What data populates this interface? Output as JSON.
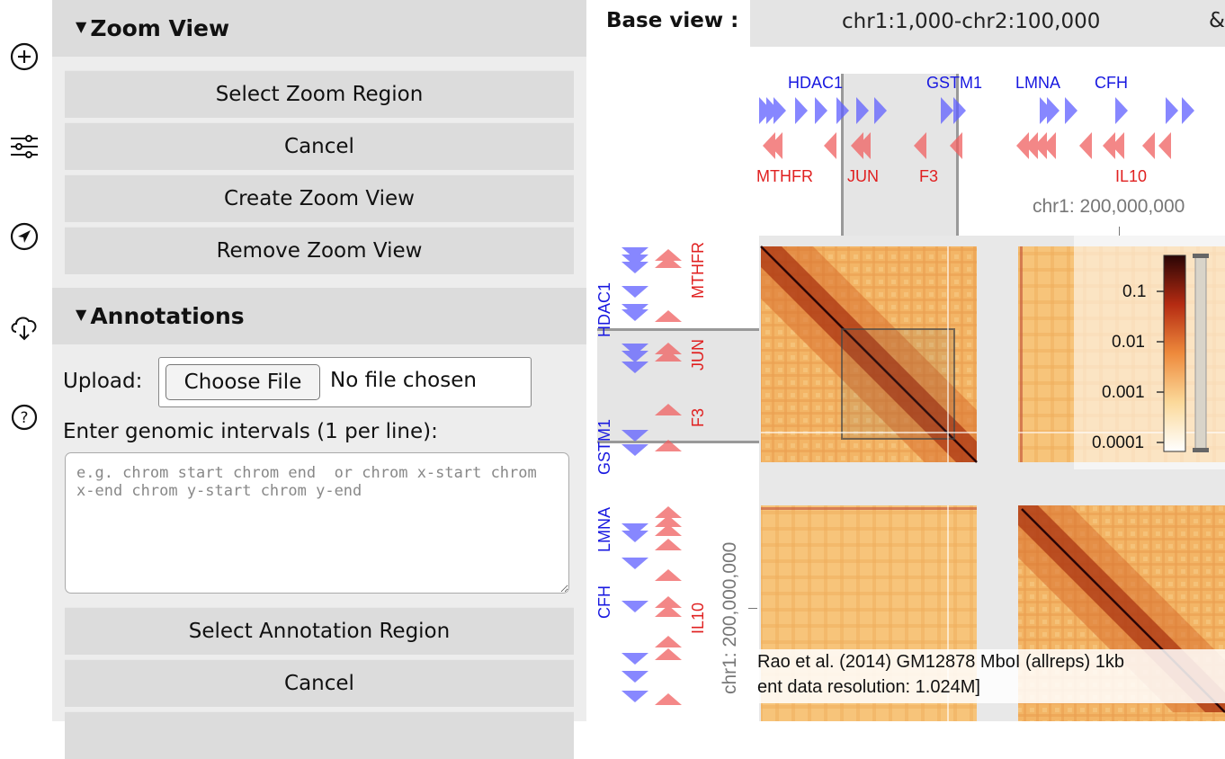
{
  "icons": [
    "plus-circle-icon",
    "sliders-icon",
    "navigate-icon",
    "cloud-download-icon",
    "help-icon"
  ],
  "zoom_view": {
    "title": "Zoom View",
    "buttons": [
      "Select Zoom Region",
      "Cancel",
      "Create Zoom View",
      "Remove Zoom View"
    ]
  },
  "annotations": {
    "title": "Annotations",
    "upload_label": "Upload:",
    "choose_file": "Choose File",
    "no_file": "No file chosen",
    "intervals_label": "Enter genomic intervals (1 per line):",
    "intervals_placeholder": "e.g. chrom start chrom end  or chrom x-start chrom x-end chrom y-start chrom y-end",
    "buttons": [
      "Select Annotation Region",
      "Cancel"
    ]
  },
  "viewer": {
    "base_view_label": "Base view :",
    "base_view_value": "chr1:1,000-chr2:100,000",
    "base_view_trailing": "&",
    "top_genes_blue": [
      "HDAC1",
      "GSTM1",
      "LMNA",
      "CFH"
    ],
    "top_genes_red": [
      "MTHFR",
      "JUN",
      "F3",
      "IL10"
    ],
    "left_genes_blue": [
      "HDAC1",
      "GSTM1",
      "LMNA",
      "CFH"
    ],
    "left_genes_red": [
      "MTHFR",
      "JUN",
      "F3",
      "IL10"
    ],
    "x_axis_label": "chr1: 200,000,000",
    "y_axis_label": "chr1: 200,000,000",
    "colorbar_ticks": [
      "0.1",
      "0.01",
      "0.001",
      "0.0001"
    ],
    "caption_line1": "Rao et al. (2014) GM12878 MboI (allreps) 1kb",
    "caption_line2": "ent data resolution: 1.024M]"
  }
}
